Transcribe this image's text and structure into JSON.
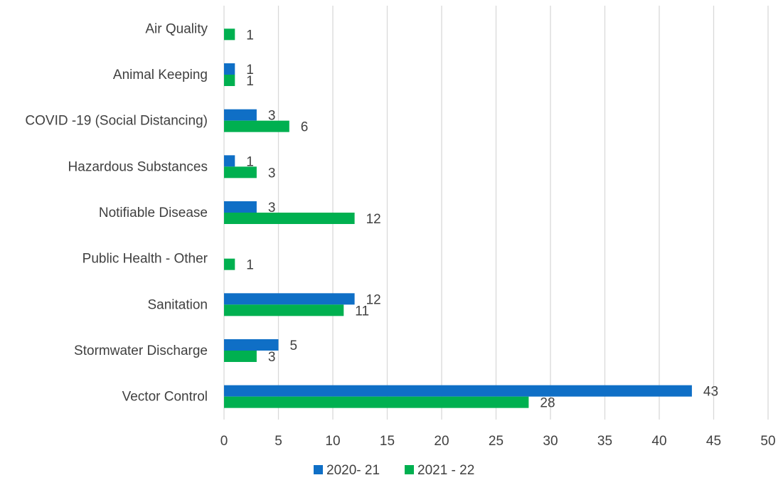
{
  "chart_data": {
    "type": "bar",
    "orientation": "horizontal",
    "categories": [
      "Air Quality",
      "Animal Keeping",
      "COVID -19 (Social Distancing)",
      "Hazardous Substances",
      "Notifiable Disease",
      "Public Health - Other",
      "Sanitation",
      "Stormwater Discharge",
      "Vector Control"
    ],
    "series": [
      {
        "name": "2020- 21",
        "color": "#0F6FC6",
        "values": [
          null,
          1,
          3,
          1,
          3,
          null,
          12,
          5,
          43
        ]
      },
      {
        "name": "2021 - 22",
        "color": "#00B050",
        "values": [
          1,
          1,
          6,
          3,
          12,
          1,
          11,
          3,
          28
        ]
      }
    ],
    "x_ticks": [
      0,
      5,
      10,
      15,
      20,
      25,
      30,
      35,
      40,
      45,
      50
    ],
    "xlim": [
      0,
      50
    ],
    "grid": true,
    "legend_position": "bottom",
    "data_labels": true
  }
}
